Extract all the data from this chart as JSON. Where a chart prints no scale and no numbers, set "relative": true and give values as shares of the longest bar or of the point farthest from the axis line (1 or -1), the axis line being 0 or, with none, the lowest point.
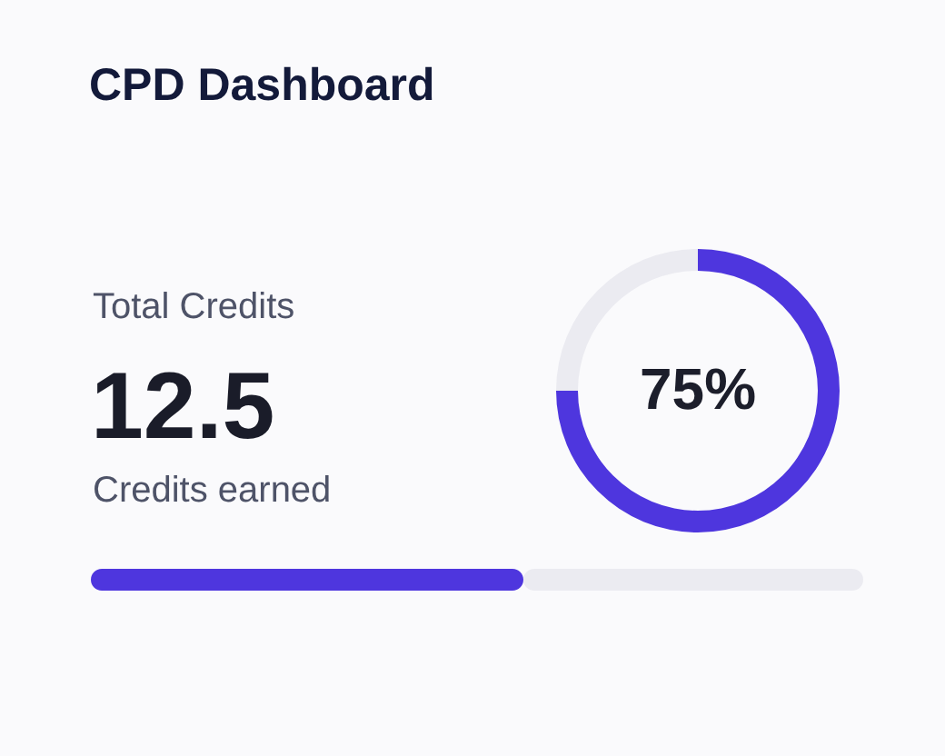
{
  "chart_data": [
    {
      "type": "other",
      "title": "CPD Dashboard",
      "annotations": [
        "Total Credits",
        "12.5",
        "Credits earned"
      ]
    },
    {
      "type": "donut",
      "categories": [
        null,
        null
      ],
      "values": [
        75,
        25
      ],
      "colors": [
        "#4e36de",
        "#ebebf1"
      ],
      "annotations": [
        "75%"
      ]
    },
    {
      "type": "bar",
      "orientation": "horizontal",
      "stacked": true,
      "relative": true,
      "categories": [
        null
      ],
      "series": [
        {
          "color": "#4e36de",
          "values": [
            0.56
          ]
        },
        {
          "color": "#ebebf1",
          "values": [
            0.44
          ]
        }
      ]
    }
  ]
}
